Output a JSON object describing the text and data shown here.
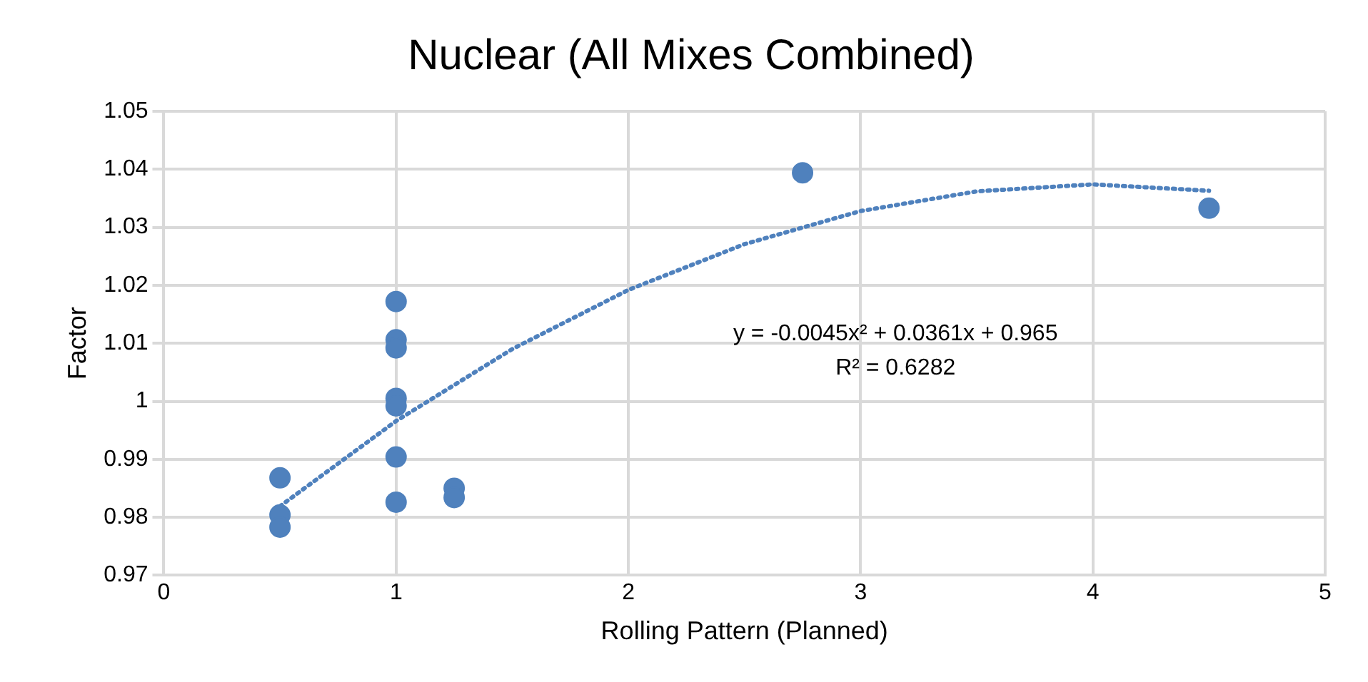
{
  "chart_data": {
    "type": "scatter",
    "title": "Nuclear (All Mixes Combined)",
    "xlabel": "Rolling Pattern (Planned)",
    "ylabel": "Factor",
    "xlim": [
      0,
      5
    ],
    "xticks": [
      0,
      1,
      2,
      3,
      4,
      5
    ],
    "ylim": [
      0.97,
      1.05
    ],
    "yticks": [
      0.97,
      0.98,
      0.99,
      1,
      1.01,
      1.02,
      1.03,
      1.04,
      1.05
    ],
    "grid": true,
    "legend": false,
    "marker": "circle",
    "series": [
      {
        "color": "#4f81bd",
        "x": [
          0.5,
          0.5,
          0.5,
          1,
          1,
          1,
          1,
          1,
          1,
          1,
          1.25,
          1.25,
          2.75,
          4.5
        ],
        "values": [
          0.9868,
          0.9804,
          0.9783,
          1.0172,
          1.0106,
          1.0092,
          1.0005,
          0.9992,
          0.9904,
          0.9826,
          0.985,
          0.9834,
          1.0394,
          1.0333
        ]
      },
      {
        "type": "line",
        "color": "#4f81bd",
        "marker": "none",
        "line_style": "dotted",
        "x": [
          0.5,
          1,
          1.5,
          2,
          2.5,
          3,
          3.5,
          4,
          4.5
        ],
        "values": [
          0.9819,
          0.9966,
          1.009,
          1.0192,
          1.0271,
          1.0328,
          1.0362,
          1.0374,
          1.0363
        ]
      }
    ],
    "annotations": [
      "y = -0.0045x² + 0.0361x + 0.965",
      "R² = 0.6282"
    ]
  }
}
